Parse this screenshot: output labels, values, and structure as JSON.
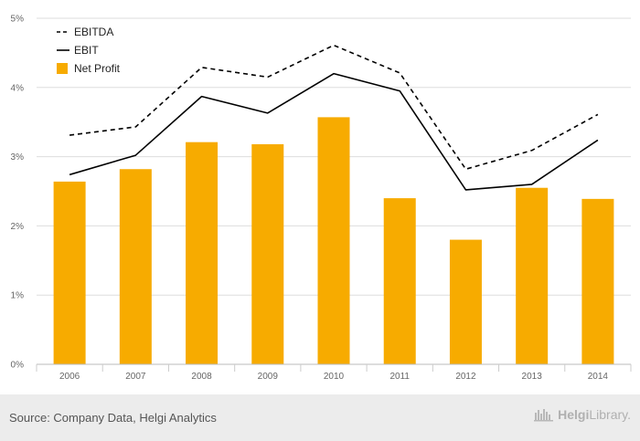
{
  "chart_data": {
    "type": "bar",
    "categories": [
      "2006",
      "2007",
      "2008",
      "2009",
      "2010",
      "2011",
      "2012",
      "2013",
      "2014"
    ],
    "series": [
      {
        "name": "Net Profit",
        "kind": "bar",
        "style": "solid",
        "color": "#f7ab00",
        "values": [
          2.64,
          2.82,
          3.21,
          3.18,
          3.57,
          2.4,
          1.8,
          2.55,
          2.39
        ]
      },
      {
        "name": "EBITDA",
        "kind": "line",
        "style": "dashed",
        "color": "#000000",
        "values": [
          3.31,
          3.43,
          4.29,
          4.15,
          4.61,
          4.21,
          2.82,
          3.09,
          3.61
        ]
      },
      {
        "name": "EBIT",
        "kind": "line",
        "style": "solid",
        "color": "#000000",
        "values": [
          2.74,
          3.02,
          3.87,
          3.63,
          4.2,
          3.95,
          2.52,
          2.6,
          3.24
        ]
      }
    ],
    "legend_order": [
      "EBITDA",
      "EBIT",
      "Net Profit"
    ],
    "legend_position": "top-left",
    "y_ticks": [
      "0%",
      "1%",
      "2%",
      "3%",
      "4%",
      "5%"
    ],
    "ylim": [
      0,
      5
    ],
    "y_unit": "%",
    "grid": true,
    "title": "",
    "xlabel": "",
    "ylabel": ""
  },
  "footer": {
    "source": "Source: Company Data, Helgi Analytics",
    "brand_a": "Helgi",
    "brand_b": "Library."
  }
}
